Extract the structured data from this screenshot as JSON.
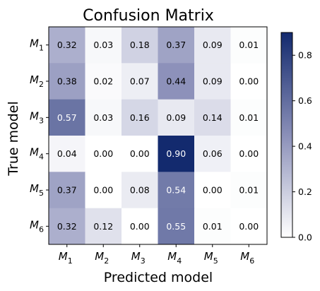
{
  "chart_data": {
    "type": "heatmap",
    "title": "Confusion Matrix",
    "xlabel": "Predicted model",
    "ylabel": "True model",
    "x_categories": [
      {
        "base": "M",
        "sub": "1"
      },
      {
        "base": "M",
        "sub": "2"
      },
      {
        "base": "M",
        "sub": "3"
      },
      {
        "base": "M",
        "sub": "4"
      },
      {
        "base": "M",
        "sub": "5"
      },
      {
        "base": "M",
        "sub": "6"
      }
    ],
    "y_categories": [
      {
        "base": "M",
        "sub": "1"
      },
      {
        "base": "M",
        "sub": "2"
      },
      {
        "base": "M",
        "sub": "3"
      },
      {
        "base": "M",
        "sub": "4"
      },
      {
        "base": "M",
        "sub": "5"
      },
      {
        "base": "M",
        "sub": "6"
      }
    ],
    "values": [
      [
        0.32,
        0.03,
        0.18,
        0.37,
        0.09,
        0.01
      ],
      [
        0.38,
        0.02,
        0.07,
        0.44,
        0.09,
        0.0
      ],
      [
        0.57,
        0.03,
        0.16,
        0.09,
        0.14,
        0.01
      ],
      [
        0.04,
        0.0,
        0.0,
        0.9,
        0.06,
        0.0
      ],
      [
        0.37,
        0.0,
        0.08,
        0.54,
        0.0,
        0.01
      ],
      [
        0.32,
        0.12,
        0.0,
        0.55,
        0.01,
        0.0
      ]
    ],
    "value_format": "0.00",
    "colorbar": {
      "range": [
        0.0,
        0.9
      ],
      "ticks": [
        0.0,
        0.2,
        0.4,
        0.6,
        0.8
      ],
      "tick_labels": [
        "0.0",
        "0.2",
        "0.4",
        "0.6",
        "0.8"
      ],
      "colors": [
        "#ffffff",
        "#8a8fb8",
        "#132a6e"
      ],
      "text_color_threshold": 0.45
    }
  }
}
